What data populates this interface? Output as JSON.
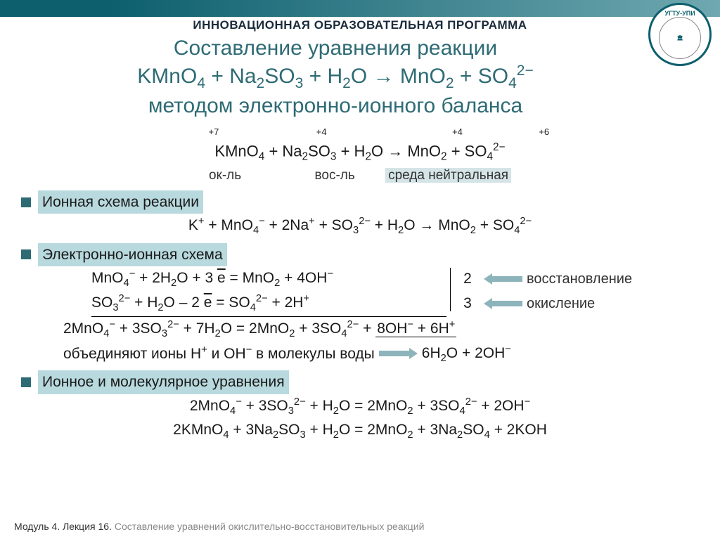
{
  "header": {
    "program_label": "ИННОВАЦИОННАЯ ОБРАЗОВАТЕЛЬНАЯ ПРОГРАММА",
    "logo_text": "УГТУ-УПИ"
  },
  "title": {
    "line1": "Составление уравнения реакции",
    "line2_html": "KMnO<sub>4</sub> + Na<sub>2</sub>SO<sub>3</sub> + H<sub>2</sub>O → MnO<sub>2</sub> + SO<sub>4</sub><sup>2−</sup>",
    "line3": "методом электронно-ионного баланса"
  },
  "main_eq": {
    "oxidation_states": [
      "+7",
      "+4",
      "+4",
      "+6"
    ],
    "equation_html": "KMnO<sub>4</sub> + Na<sub>2</sub>SO<sub>3</sub> + H<sub>2</sub>O → MnO<sub>2</sub> + SO<sub>4</sub><sup>2−</sup>",
    "role_ox": "ок-ль",
    "role_red": "вос-ль",
    "env_label": "среда нейтральная"
  },
  "sections": {
    "ionic_scheme": "Ионная схема реакции",
    "ionic_eq_html": "K<sup>+</sup> + MnO<sub>4</sub><sup>−</sup> + 2Na<sup>+</sup> + SO<sub>3</sub><sup>2−</sup> + H<sub>2</sub>O → MnO<sub>2</sub> + SO<sub>4</sub><sup>2−</sup>",
    "electron_ionic": "Электронно-ионная схема",
    "half1_html": "MnO<sub>4</sub><sup>−</sup> + 2H<sub>2</sub>O + 3 <span class=\"ebar\">e</span> = MnO<sub>2</sub> + 4OH<sup>−</sup>",
    "half1_coef": "2",
    "half1_label": "восстановление",
    "half2_html": "SO<sub>3</sub><sup>2−</sup> + H<sub>2</sub>O – 2 <span class=\"ebar\">e</span> = SO<sub>4</sub><sup>2−</sup> + 2H<sup>+</sup>",
    "half2_coef": "3",
    "half2_label": "окисление",
    "sum_html": "2MnO<sub>4</sub><sup>−</sup> + 3SO<sub>3</sub><sup>2−</sup> + 7H<sub>2</sub>O = 2MnO<sub>2</sub> + 3SO<sub>4</sub><sup>2−</sup> + <span class=\"uline\">8OH<sup>−</sup> + 6H<sup>+</sup></span>",
    "combine_text_html": "объединяют ионы H<sup>+</sup> и OH<sup>−</sup> в молекулы воды",
    "combine_result_html": "6H<sub>2</sub>O + 2OH<sup>−</sup>",
    "ionic_molecular": "Ионное и молекулярное уравнения",
    "final1_html": "2MnO<sub>4</sub><sup>−</sup> + 3SO<sub>3</sub><sup>2−</sup> + H<sub>2</sub>O = 2MnO<sub>2</sub> + 3SO<sub>4</sub><sup>2−</sup> + 2OH<sup>−</sup>",
    "final2_html": "2KMnO<sub>4</sub> + 3Na<sub>2</sub>SO<sub>3</sub> + H<sub>2</sub>O = 2MnO<sub>2</sub> + 3Na<sub>2</sub>SO<sub>4</sub> + 2KOH"
  },
  "footer": {
    "module": "Модуль 4. Лекция 16.",
    "topic": "Составление уравнений окислительно-восстановительных реакций"
  },
  "colors": {
    "accent": "#2e6b75",
    "header_dark": "#0d5f6e",
    "highlight_bg": "#b8d9dd",
    "arrow": "#8db4ba"
  }
}
